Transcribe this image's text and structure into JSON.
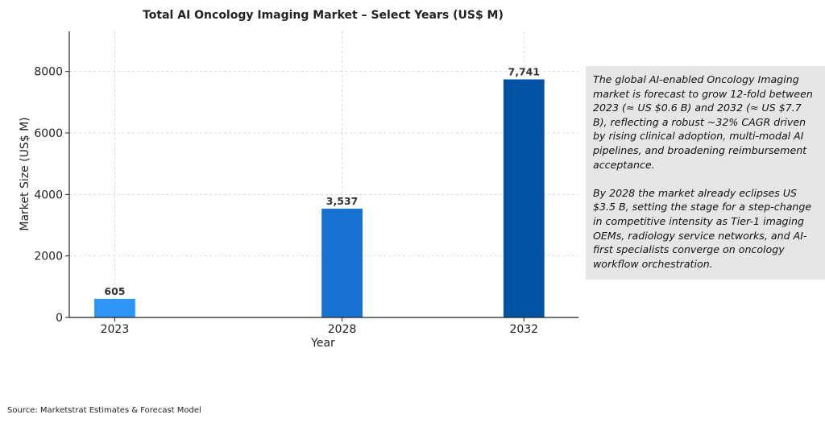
{
  "chart_data": {
    "type": "bar",
    "title": "Total AI Oncology Imaging Market – Select Years (US$ M)",
    "xlabel": "Year",
    "ylabel": "Market Size (US$ M)",
    "categories": [
      "2023",
      "2028",
      "2032"
    ],
    "x_positions": [
      2023,
      2028,
      2032
    ],
    "values": [
      605,
      3537,
      7741
    ],
    "value_labels": [
      "605",
      "3,537",
      "7,741"
    ],
    "bar_colors": [
      "#2d96f6",
      "#1872d2",
      "#0252a5"
    ],
    "ylim": [
      0,
      9300
    ],
    "xlim": [
      2022,
      2033.2
    ],
    "yticks": [
      0,
      2000,
      4000,
      6000,
      8000
    ],
    "ytick_labels": [
      "0",
      "2000",
      "4000",
      "6000",
      "8000"
    ],
    "grid": true,
    "legend": "none"
  },
  "note": {
    "paragraphs": [
      "The global AI-enabled Oncology Imaging market is forecast to grow 12-fold between 2023 (≈ US $0.6 B) and 2032 (≈ US $7.7 B), reflecting a robust ~32% CAGR driven by rising clinical adoption, multi-modal AI pipelines, and broadening reimbursement acceptance.",
      "By 2028 the market already eclipses US $3.5 B, setting the stage for a step-change in competitive intensity as Tier-1 imaging OEMs, radiology service networks, and AI-first specialists converge on oncology workflow orchestration."
    ]
  },
  "source": "Source: Marketstrat Estimates & Forecast Model"
}
